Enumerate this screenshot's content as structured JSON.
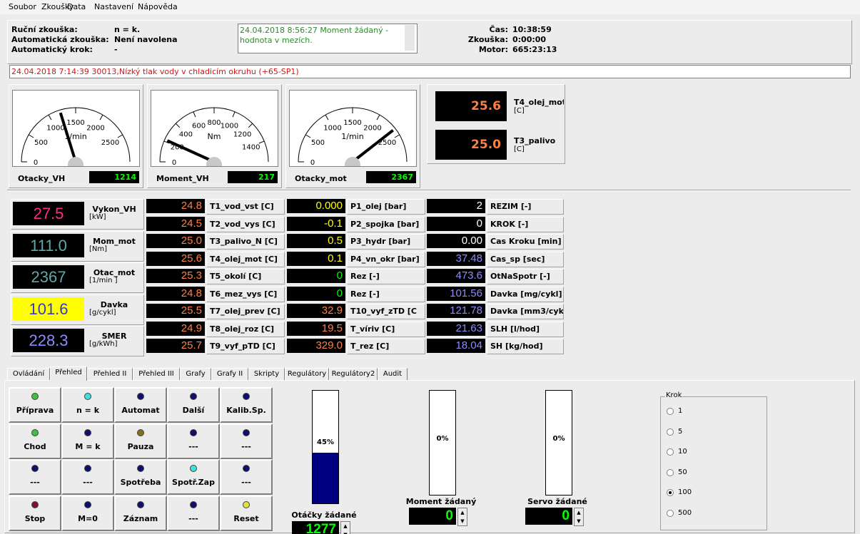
{
  "menu": [
    "Soubor",
    "Zkoušky",
    "Data",
    "Nastavení",
    "Nápověda"
  ],
  "status": [
    {
      "label": "Ruční zkouška:",
      "value": "n = k."
    },
    {
      "label": "Automatická zkouška:",
      "value": "Není navolena"
    },
    {
      "label": "Automatický krok:",
      "value": "-"
    }
  ],
  "message": "24.04.2018  8:56:27 Moment žádaný - hodnota v mezích.",
  "clock": [
    {
      "label": "Čas:",
      "value": "10:38:59"
    },
    {
      "label": "Zkouška:",
      "value": "0:00:00"
    },
    {
      "label": "Motor:",
      "value": "665:23:13"
    }
  ],
  "alarm": "24.04.2018  7:14:39 30013,Nízký tlak vody v chladicím okruhu (+65-SP1)",
  "gauges": [
    {
      "label": "Otacky_VH",
      "value": 1214,
      "unit": "1/min",
      "min": 0,
      "max": 3000,
      "ticks": [
        0,
        500,
        1000,
        1500,
        2000,
        2500
      ]
    },
    {
      "label": "Moment_VH",
      "value": 217,
      "unit": "Nm",
      "min": 0,
      "max": 1600,
      "ticks": [
        0,
        200,
        400,
        600,
        800,
        1000,
        1200,
        1400
      ]
    },
    {
      "label": "Otacky_mot",
      "value": 2367,
      "unit": "1/min",
      "min": 0,
      "max": 3000,
      "ticks": [
        0,
        500,
        1000,
        1500,
        2000,
        2500
      ]
    }
  ],
  "temps": [
    {
      "value": "25.6",
      "name": "T4_olej_mot",
      "unit": "[C]"
    },
    {
      "value": "25.0",
      "name": "T3_palivo",
      "unit": "[C]"
    }
  ],
  "big_displays": [
    {
      "value": "27.5",
      "name": "Vykon_VH",
      "unit": "[kW]",
      "color": "#ff2a8a",
      "background": "#000000"
    },
    {
      "value": "111.0",
      "name": "Mom_mot",
      "unit": "[Nm]",
      "color": "#5fa8a8",
      "background": "#000000"
    },
    {
      "value": "2367",
      "name": "Otac_mot",
      "unit": "[1/min ]",
      "color": "#5fa8a8",
      "background": "#000000"
    },
    {
      "value": "101.6",
      "name": "Davka",
      "unit": "[g/cykl]",
      "color": "#3838c8",
      "background": "#ffff00"
    },
    {
      "value": "228.3",
      "name": "SMER",
      "unit": "[g/kWh]",
      "color": "#8c8cff",
      "background": "#000000"
    }
  ],
  "channels": [
    [
      {
        "value": "24.8",
        "label": "T1_vod_vst  [C]",
        "color": "#ff8040"
      },
      {
        "value": "24.5",
        "label": "T2_vod_vys  [C]",
        "color": "#ff8040"
      },
      {
        "value": "25.0",
        "label": "T3_palivo_N  [C]",
        "color": "#ff8040"
      },
      {
        "value": "25.6",
        "label": "T4_olej_mot  [C]",
        "color": "#ff8040"
      },
      {
        "value": "25.3",
        "label": "T5_okolí  [C]",
        "color": "#ff8040"
      },
      {
        "value": "24.8",
        "label": "T6_mez_vys  [C]",
        "color": "#ff8040"
      },
      {
        "value": "25.5",
        "label": "T7_olej_prev  [C]",
        "color": "#ff8040"
      },
      {
        "value": "24.9",
        "label": "T8_olej_roz  [C]",
        "color": "#ff8040"
      },
      {
        "value": "25.7",
        "label": "T9_vyf_pTD  [C]",
        "color": "#ff8040"
      }
    ],
    [
      {
        "value": "0.000",
        "label": "P1_olej  [bar]",
        "color": "#ffff00"
      },
      {
        "value": "-0.1",
        "label": "P2_spojka  [bar]",
        "color": "#ffff00"
      },
      {
        "value": "0.5",
        "label": "P3_hydr  [bar]",
        "color": "#ffff00"
      },
      {
        "value": "0.1",
        "label": "P4_vn_okr  [bar]",
        "color": "#ffff00"
      },
      {
        "value": "0",
        "label": "Rez  [-]",
        "color": "#00ff00"
      },
      {
        "value": "0",
        "label": "Rez  [-]",
        "color": "#00ff00"
      },
      {
        "value": "32.9",
        "label": "T10_vyf_zTD  [C",
        "color": "#ff8040"
      },
      {
        "value": "19.5",
        "label": "T_víriv  [C]",
        "color": "#ff8040"
      },
      {
        "value": "329.0",
        "label": "T_rez  [C]",
        "color": "#ff8040"
      }
    ],
    [
      {
        "value": "2",
        "label": "REZIM  [-]",
        "color": "#ffffff"
      },
      {
        "value": "0",
        "label": "KROK  [-]",
        "color": "#ffffff"
      },
      {
        "value": "0.00",
        "label": "Cas Kroku  [min]",
        "color": "#ffffff"
      },
      {
        "value": "37.48",
        "label": "Cas_sp  [sec]",
        "color": "#8c8cff"
      },
      {
        "value": "473.6",
        "label": "OtNaSpotr  [-]",
        "color": "#8c8cff"
      },
      {
        "value": "101.56",
        "label": "Davka  [mg/cykl]",
        "color": "#8c8cff"
      },
      {
        "value": "121.78",
        "label": "Davka  [mm3/cyk",
        "color": "#8c8cff"
      },
      {
        "value": "21.63",
        "label": "SLH  [l/hod]",
        "color": "#8c8cff"
      },
      {
        "value": "18.04",
        "label": "SH  [kg/hod]",
        "color": "#8c8cff"
      }
    ]
  ],
  "tabs": [
    "Ovládání",
    "Přehled",
    "Přehled II",
    "Přehled III",
    "Grafy",
    "Grafy II",
    "Skripty",
    "Regulátory",
    "Regulátory2",
    "Audit"
  ],
  "active_tab": 1,
  "buttons": [
    {
      "label": "Příprava",
      "led": "#40c040"
    },
    {
      "label": "n = k",
      "led": "#40e0e0"
    },
    {
      "label": "Automat",
      "led": "#10106a"
    },
    {
      "label": "Další",
      "led": "#10106a"
    },
    {
      "label": "Kalib.Sp.",
      "led": "#10106a"
    },
    {
      "label": "Chod",
      "led": "#40c040"
    },
    {
      "label": "M = k",
      "led": "#10106a"
    },
    {
      "label": "Pauza",
      "led": "#807020"
    },
    {
      "label": "---",
      "led": "#10106a"
    },
    {
      "label": "---",
      "led": "#10106a"
    },
    {
      "label": "---",
      "led": "#10106a"
    },
    {
      "label": "---",
      "led": "#10106a"
    },
    {
      "label": "Spotřeba",
      "led": "#10106a"
    },
    {
      "label": "Spotř.Zap",
      "led": "#40e0e0"
    },
    {
      "label": "---",
      "led": "#10106a"
    },
    {
      "label": "Stop",
      "led": "#801030"
    },
    {
      "label": "M=0",
      "led": "#10106a"
    },
    {
      "label": "Záznam",
      "led": "#10106a"
    },
    {
      "label": "---",
      "led": "#10106a"
    },
    {
      "label": "Reset",
      "led": "#e0e040"
    }
  ],
  "setpoints": [
    {
      "label": "Otáčky žádané",
      "value": "1277",
      "percent": 45,
      "percent_label": "45%"
    },
    {
      "label": "Moment žádaný",
      "value": "0",
      "percent": 0,
      "percent_label": "0%"
    },
    {
      "label": "Servo žádané",
      "value": "0",
      "percent": 0,
      "percent_label": "0%"
    }
  ],
  "krok": {
    "title": "Krok",
    "options": [
      "1",
      "5",
      "10",
      "50",
      "100",
      "500"
    ],
    "selected": 4
  }
}
